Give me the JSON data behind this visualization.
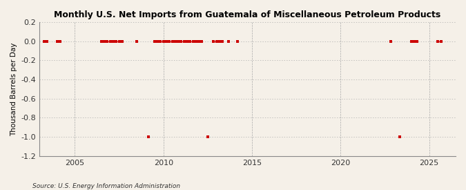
{
  "title": "Monthly U.S. Net Imports from Guatemala of Miscellaneous Petroleum Products",
  "ylabel": "Thousand Barrels per Day",
  "source": "Source: U.S. Energy Information Administration",
  "background_color": "#f5f0e8",
  "line_color": "#cc0000",
  "marker_color": "#cc0000",
  "ylim": [
    -1.2,
    0.2
  ],
  "yticks": [
    0.2,
    0.0,
    -0.2,
    -0.4,
    -0.6,
    -0.8,
    -1.0,
    -1.2
  ],
  "xlim_start": 2003.0,
  "xlim_end": 2026.5,
  "xticks": [
    2005,
    2010,
    2015,
    2020,
    2025
  ],
  "segments": [
    [
      [
        2003.25,
        0
      ],
      [
        2003.42,
        0
      ]
    ],
    [
      [
        2004.0,
        0
      ],
      [
        2004.17,
        0
      ]
    ],
    [
      [
        2006.5,
        0
      ],
      [
        2006.67,
        0
      ],
      [
        2006.83,
        0
      ],
      [
        2007.0,
        0
      ],
      [
        2007.17,
        0
      ],
      [
        2007.33,
        0
      ],
      [
        2007.5,
        0
      ],
      [
        2007.67,
        0
      ]
    ],
    [
      [
        2008.5,
        0
      ]
    ],
    [
      [
        2009.17,
        -1
      ]
    ],
    [
      [
        2009.5,
        0
      ],
      [
        2009.67,
        0
      ],
      [
        2009.83,
        0
      ],
      [
        2010.0,
        0
      ],
      [
        2010.17,
        0
      ],
      [
        2010.33,
        0
      ],
      [
        2010.5,
        0
      ],
      [
        2010.67,
        0
      ],
      [
        2010.83,
        0
      ],
      [
        2011.0,
        0
      ],
      [
        2011.17,
        0
      ],
      [
        2011.33,
        0
      ],
      [
        2011.5,
        0
      ],
      [
        2011.67,
        0
      ],
      [
        2011.83,
        0
      ],
      [
        2012.0,
        0
      ],
      [
        2012.17,
        0
      ]
    ],
    [
      [
        2012.5,
        -1
      ]
    ],
    [
      [
        2012.83,
        0
      ],
      [
        2013.0,
        0
      ],
      [
        2013.17,
        0
      ],
      [
        2013.33,
        0
      ]
    ],
    [
      [
        2013.67,
        0
      ]
    ],
    [
      [
        2014.17,
        0
      ]
    ],
    [
      [
        2022.83,
        0
      ]
    ],
    [
      [
        2023.33,
        -1
      ]
    ],
    [
      [
        2024.0,
        0
      ],
      [
        2024.17,
        0
      ],
      [
        2024.33,
        0
      ]
    ],
    [
      [
        2025.5,
        0
      ],
      [
        2025.67,
        0
      ]
    ]
  ],
  "vgrid_positions": [
    2005,
    2010,
    2015,
    2020,
    2025
  ],
  "hgrid_positions": [
    0.2,
    0.0,
    -0.2,
    -0.4,
    -0.6,
    -0.8,
    -1.0,
    -1.2
  ]
}
